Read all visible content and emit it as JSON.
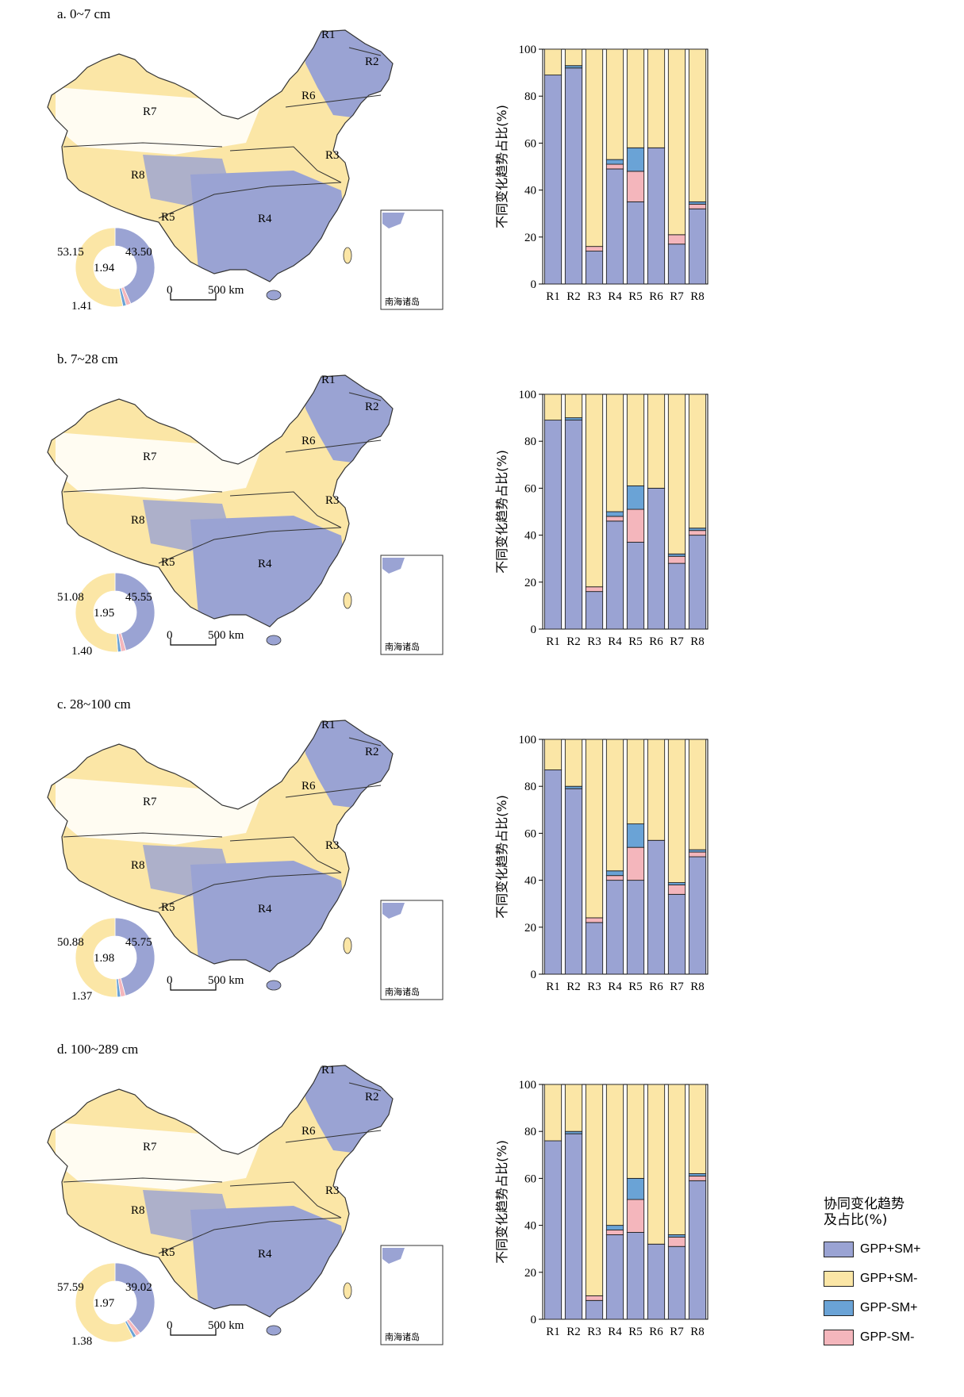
{
  "colors": {
    "gpp_sm_pos": "#9aa3d3",
    "gpp_pos_sm_neg": "#fbe6a6",
    "gpp_neg_sm_pos": "#6aa3d6",
    "gpp_sm_neg": "#f4b6bc"
  },
  "map": {
    "scale_zero": "0",
    "scale_label": "500 km",
    "inset_label": "南海诸岛",
    "regions": [
      "R1",
      "R2",
      "R3",
      "R4",
      "R5",
      "R6",
      "R7",
      "R8"
    ]
  },
  "legend": {
    "title_line1": "协同变化趋势",
    "title_line2": "及占比(%)",
    "items": [
      "GPP+SM+",
      "GPP+SM-",
      "GPP-SM+",
      "GPP-SM-"
    ]
  },
  "chart_data": [
    {
      "type": "bar",
      "stacked": true,
      "title": "a. 0~7 cm",
      "ylabel": "不同变化趋势占比(%)",
      "ylim": [
        0,
        100
      ],
      "yticks": [
        "0",
        "20",
        "40",
        "60",
        "80",
        "100"
      ],
      "categories": [
        "R1",
        "R2",
        "R3",
        "R4",
        "R5",
        "R6",
        "R7",
        "R8"
      ],
      "series": [
        {
          "name": "GPP+SM+",
          "values": [
            89,
            92,
            14,
            49,
            35,
            58,
            17,
            32
          ]
        },
        {
          "name": "GPP-SM-",
          "values": [
            0,
            0,
            2,
            2,
            13,
            0,
            4,
            2
          ]
        },
        {
          "name": "GPP-SM+",
          "values": [
            0,
            1,
            0,
            2,
            10,
            0,
            0,
            1
          ]
        },
        {
          "name": "GPP+SM-",
          "values": [
            11,
            7,
            84,
            47,
            42,
            42,
            79,
            65
          ]
        }
      ],
      "donut": {
        "labels": [
          "43.50",
          "53.15",
          "1.94",
          "1.41"
        ],
        "values": [
          43.5,
          53.15,
          1.94,
          1.41
        ]
      }
    },
    {
      "type": "bar",
      "stacked": true,
      "title": "b. 7~28 cm",
      "ylabel": "不同变化趋势占比(%)",
      "ylim": [
        0,
        100
      ],
      "yticks": [
        "0",
        "20",
        "40",
        "60",
        "80",
        "100"
      ],
      "categories": [
        "R1",
        "R2",
        "R3",
        "R4",
        "R5",
        "R6",
        "R7",
        "R8"
      ],
      "series": [
        {
          "name": "GPP+SM+",
          "values": [
            89,
            89,
            16,
            46,
            37,
            60,
            28,
            40
          ]
        },
        {
          "name": "GPP-SM-",
          "values": [
            0,
            0,
            2,
            2,
            14,
            0,
            3,
            2
          ]
        },
        {
          "name": "GPP-SM+",
          "values": [
            0,
            1,
            0,
            2,
            10,
            0,
            1,
            1
          ]
        },
        {
          "name": "GPP+SM-",
          "values": [
            11,
            10,
            82,
            50,
            39,
            40,
            68,
            57
          ]
        }
      ],
      "donut": {
        "labels": [
          "45.55",
          "51.08",
          "1.95",
          "1.40"
        ],
        "values": [
          45.55,
          51.08,
          1.95,
          1.4
        ]
      }
    },
    {
      "type": "bar",
      "stacked": true,
      "title": "c. 28~100 cm",
      "ylabel": "不同变化趋势占比(%)",
      "ylim": [
        0,
        100
      ],
      "yticks": [
        "0",
        "20",
        "40",
        "60",
        "80",
        "100"
      ],
      "categories": [
        "R1",
        "R2",
        "R3",
        "R4",
        "R5",
        "R6",
        "R7",
        "R8"
      ],
      "series": [
        {
          "name": "GPP+SM+",
          "values": [
            87,
            79,
            22,
            40,
            40,
            57,
            34,
            50
          ]
        },
        {
          "name": "GPP-SM-",
          "values": [
            0,
            0,
            2,
            2,
            14,
            0,
            4,
            2
          ]
        },
        {
          "name": "GPP-SM+",
          "values": [
            0,
            1,
            0,
            2,
            10,
            0,
            1,
            1
          ]
        },
        {
          "name": "GPP+SM-",
          "values": [
            13,
            20,
            76,
            56,
            36,
            43,
            61,
            47
          ]
        }
      ],
      "donut": {
        "labels": [
          "45.75",
          "50.88",
          "1.98",
          "1.37"
        ],
        "values": [
          45.75,
          50.88,
          1.98,
          1.37
        ]
      }
    },
    {
      "type": "bar",
      "stacked": true,
      "title": "d. 100~289 cm",
      "ylabel": "不同变化趋势占比(%)",
      "ylim": [
        0,
        100
      ],
      "yticks": [
        "0",
        "20",
        "40",
        "60",
        "80",
        "100"
      ],
      "categories": [
        "R1",
        "R2",
        "R3",
        "R4",
        "R5",
        "R6",
        "R7",
        "R8"
      ],
      "series": [
        {
          "name": "GPP+SM+",
          "values": [
            76,
            79,
            8,
            36,
            37,
            32,
            31,
            59
          ]
        },
        {
          "name": "GPP-SM-",
          "values": [
            0,
            0,
            2,
            2,
            14,
            0,
            4,
            2
          ]
        },
        {
          "name": "GPP-SM+",
          "values": [
            0,
            1,
            0,
            2,
            9,
            0,
            1,
            1
          ]
        },
        {
          "name": "GPP+SM-",
          "values": [
            24,
            20,
            90,
            60,
            40,
            68,
            64,
            38
          ]
        }
      ],
      "donut": {
        "labels": [
          "39.02",
          "57.59",
          "1.97",
          "1.38"
        ],
        "values": [
          39.02,
          57.59,
          1.97,
          1.38
        ]
      }
    }
  ]
}
